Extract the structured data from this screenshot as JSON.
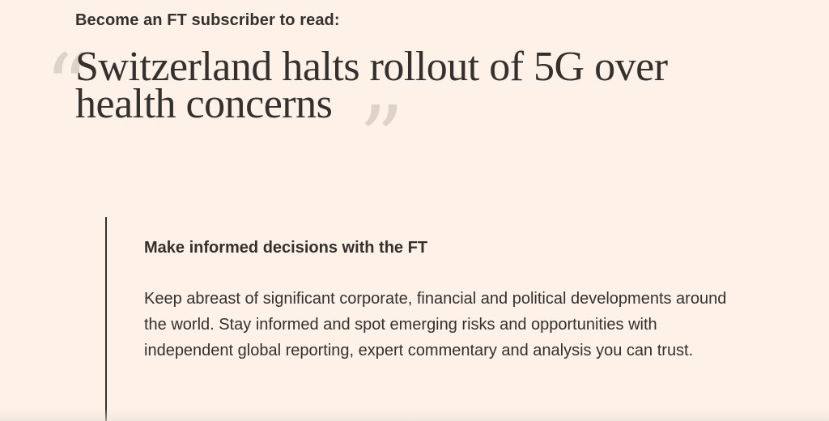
{
  "header": {
    "kicker": "Become an FT subscriber to read:"
  },
  "article": {
    "headline": "Switzerland halts rollout of 5G over health concerns",
    "quote_open": "“",
    "quote_close": "”"
  },
  "panel": {
    "title": "Make informed decisions with the FT",
    "body": "Keep abreast of significant corporate, financial and political developments around the world. Stay informed and spot emerging risks and opportunities with independent global reporting, expert commentary and analysis you can trust."
  },
  "colors": {
    "background": "#fdf1e8",
    "text": "#33302e",
    "quote_mark": "#ddd3c9"
  }
}
